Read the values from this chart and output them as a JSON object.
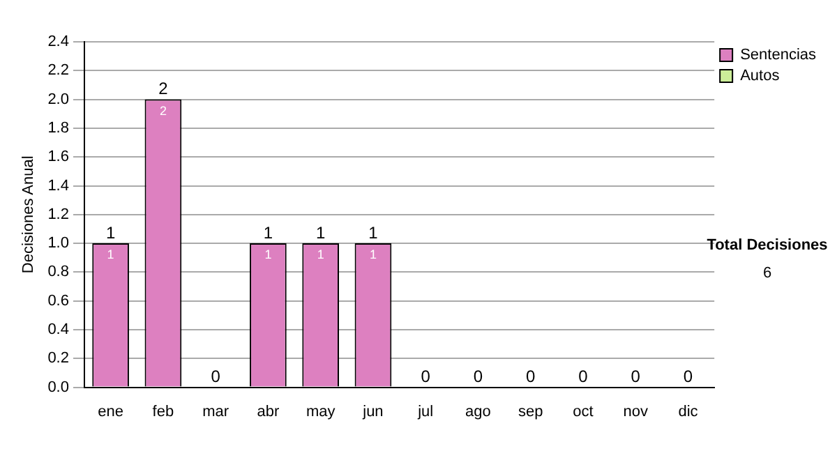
{
  "chart_data": {
    "type": "bar",
    "ylabel": "Decisiones Anual",
    "categories": [
      "ene",
      "feb",
      "mar",
      "abr",
      "may",
      "jun",
      "jul",
      "ago",
      "sep",
      "oct",
      "nov",
      "dic"
    ],
    "stacked": true,
    "series": [
      {
        "name": "Sentencias",
        "color": "#dd80c0",
        "values": [
          1,
          2,
          0,
          1,
          1,
          1,
          0,
          0,
          0,
          0,
          0,
          0
        ],
        "value_labels": [
          "1",
          "2",
          null,
          "1",
          "1",
          "1",
          null,
          null,
          null,
          null,
          null,
          null
        ]
      },
      {
        "name": "Autos",
        "color": "#ccee99",
        "values": [
          0,
          0,
          0,
          0,
          0,
          0,
          0,
          0,
          0,
          0,
          0,
          0
        ]
      }
    ],
    "totals": [
      "1",
      "2",
      "0",
      "1",
      "1",
      "1",
      "0",
      "0",
      "0",
      "0",
      "0",
      "0"
    ],
    "ylim": [
      0,
      2.4
    ],
    "yticks": [
      {
        "value": 0,
        "label": "0.0"
      },
      0.2,
      0.4,
      0.6,
      0.8,
      {
        "value": 1,
        "label": "1.0"
      },
      1.2,
      1.4,
      1.6,
      1.8,
      {
        "value": 2,
        "label": "2.0"
      },
      2.2,
      2.4
    ],
    "grid": "y",
    "legend": "right",
    "annotations": [
      "Total Decisiones",
      "6"
    ]
  }
}
